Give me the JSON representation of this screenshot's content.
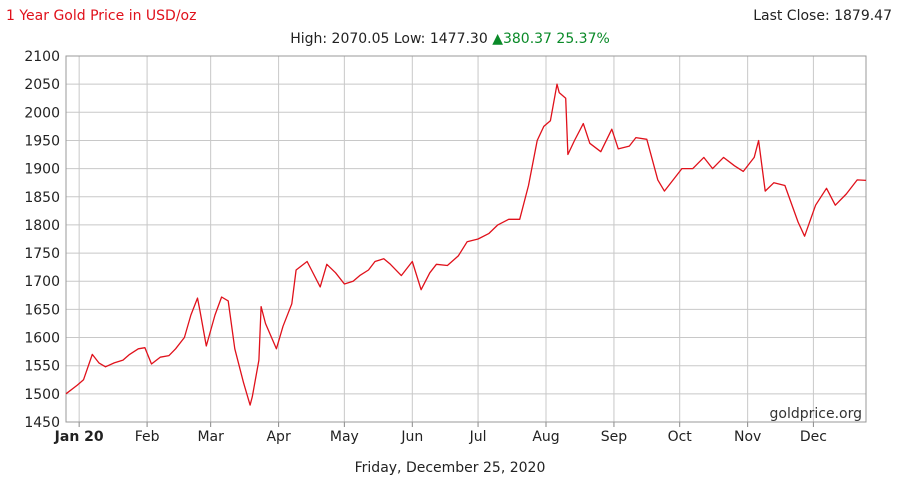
{
  "header": {
    "title": "1 Year Gold Price in USD/oz",
    "last_close_label": "Last Close: 1879.47",
    "high_low_label": "High: 2070.05 Low: 1477.30",
    "change_label": "▲380.37 25.37%"
  },
  "watermark": "goldprice.org",
  "footer": {
    "date": "Friday, December 25, 2020"
  },
  "colors": {
    "line": "#e0111b",
    "title": "#e0111b",
    "up": "#0a8a28",
    "grid": "#c8c8c8"
  },
  "chart_data": {
    "type": "line",
    "ylim": [
      1450,
      2100
    ],
    "yticks": [
      1450,
      1500,
      1550,
      1600,
      1650,
      1700,
      1750,
      1800,
      1850,
      1900,
      1950,
      2000,
      2050,
      2100
    ],
    "xlim": [
      "2019-12-26",
      "2020-12-25"
    ],
    "month_ticks": [
      {
        "date": "2020-01-01",
        "label": "Jan 20"
      },
      {
        "date": "2020-02-01",
        "label": "Feb"
      },
      {
        "date": "2020-03-01",
        "label": "Mar"
      },
      {
        "date": "2020-04-01",
        "label": "Apr"
      },
      {
        "date": "2020-05-01",
        "label": "May"
      },
      {
        "date": "2020-06-01",
        "label": "Jun"
      },
      {
        "date": "2020-07-01",
        "label": "Jul"
      },
      {
        "date": "2020-08-01",
        "label": "Aug"
      },
      {
        "date": "2020-09-01",
        "label": "Sep"
      },
      {
        "date": "2020-10-01",
        "label": "Oct"
      },
      {
        "date": "2020-11-01",
        "label": "Nov"
      },
      {
        "date": "2020-12-01",
        "label": "Dec"
      }
    ],
    "grid": true,
    "x": [
      "2019-12-26",
      "2019-12-31",
      "2020-01-03",
      "2020-01-07",
      "2020-01-10",
      "2020-01-13",
      "2020-01-17",
      "2020-01-21",
      "2020-01-24",
      "2020-01-28",
      "2020-01-31",
      "2020-02-03",
      "2020-02-07",
      "2020-02-11",
      "2020-02-14",
      "2020-02-18",
      "2020-02-21",
      "2020-02-24",
      "2020-02-25",
      "2020-02-28",
      "2020-03-03",
      "2020-03-06",
      "2020-03-09",
      "2020-03-12",
      "2020-03-16",
      "2020-03-19",
      "2020-03-20",
      "2020-03-23",
      "2020-03-24",
      "2020-03-26",
      "2020-03-31",
      "2020-04-03",
      "2020-04-07",
      "2020-04-09",
      "2020-04-14",
      "2020-04-16",
      "2020-04-20",
      "2020-04-23",
      "2020-04-27",
      "2020-05-01",
      "2020-05-05",
      "2020-05-08",
      "2020-05-12",
      "2020-05-15",
      "2020-05-19",
      "2020-05-22",
      "2020-05-27",
      "2020-06-01",
      "2020-06-05",
      "2020-06-09",
      "2020-06-12",
      "2020-06-17",
      "2020-06-22",
      "2020-06-26",
      "2020-07-01",
      "2020-07-06",
      "2020-07-10",
      "2020-07-15",
      "2020-07-20",
      "2020-07-24",
      "2020-07-28",
      "2020-07-31",
      "2020-08-03",
      "2020-08-06",
      "2020-08-07",
      "2020-08-10",
      "2020-08-11",
      "2020-08-14",
      "2020-08-18",
      "2020-08-21",
      "2020-08-26",
      "2020-08-31",
      "2020-09-03",
      "2020-09-08",
      "2020-09-11",
      "2020-09-16",
      "2020-09-21",
      "2020-09-24",
      "2020-09-29",
      "2020-10-02",
      "2020-10-07",
      "2020-10-12",
      "2020-10-16",
      "2020-10-21",
      "2020-10-26",
      "2020-10-30",
      "2020-11-04",
      "2020-11-06",
      "2020-11-09",
      "2020-11-13",
      "2020-11-18",
      "2020-11-24",
      "2020-11-27",
      "2020-12-02",
      "2020-12-07",
      "2020-12-11",
      "2020-12-16",
      "2020-12-21",
      "2020-12-25"
    ],
    "series": [
      {
        "values": [
          1500,
          1515,
          1525,
          1570,
          1555,
          1548,
          1555,
          1560,
          1570,
          1580,
          1582,
          1553,
          1565,
          1568,
          1580,
          1600,
          1640,
          1670,
          1650,
          1585,
          1640,
          1672,
          1665,
          1580,
          1520,
          1480,
          1495,
          1560,
          1655,
          1625,
          1580,
          1620,
          1660,
          1720,
          1735,
          1720,
          1690,
          1730,
          1715,
          1695,
          1700,
          1710,
          1720,
          1735,
          1740,
          1730,
          1710,
          1735,
          1685,
          1715,
          1730,
          1728,
          1745,
          1770,
          1775,
          1785,
          1800,
          1810,
          1810,
          1870,
          1950,
          1975,
          1985,
          2050,
          2035,
          2025,
          1925,
          1950,
          1980,
          1945,
          1930,
          1970,
          1935,
          1940,
          1955,
          1952,
          1880,
          1860,
          1885,
          1900,
          1900,
          1920,
          1900,
          1920,
          1905,
          1895,
          1920,
          1950,
          1860,
          1875,
          1870,
          1805,
          1780,
          1835,
          1865,
          1835,
          1855,
          1880,
          1879
        ]
      }
    ]
  }
}
